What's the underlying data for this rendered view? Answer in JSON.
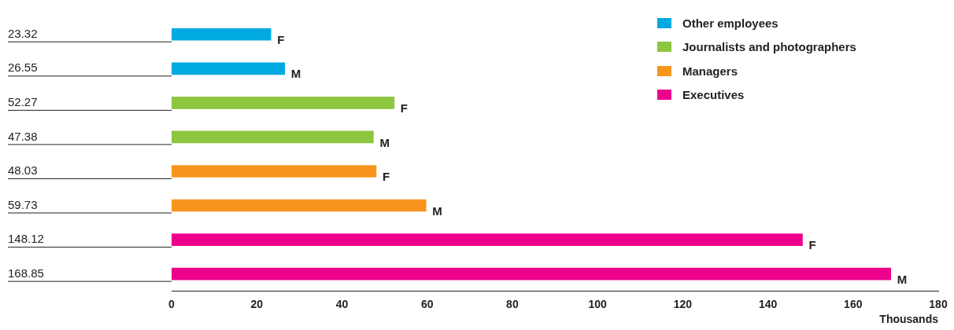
{
  "chart_data": {
    "type": "bar",
    "orientation": "horizontal",
    "xlabel": "Thousands",
    "categories": [
      "23.32",
      "26.55",
      "52.27",
      "47.38",
      "48.03",
      "59.73",
      "148.12",
      "168.85"
    ],
    "series": [
      {
        "name": "Other employees",
        "color": "#00a9e0",
        "values": [
          23.32,
          26.55,
          null,
          null,
          null,
          null,
          null,
          null
        ]
      },
      {
        "name": "Journalists and photographers",
        "color": "#8dc63f",
        "values": [
          null,
          null,
          52.27,
          47.38,
          null,
          null,
          null,
          null
        ]
      },
      {
        "name": "Managers",
        "color": "#f7941d",
        "values": [
          null,
          null,
          null,
          null,
          48.03,
          59.73,
          null,
          null
        ]
      },
      {
        "name": "Executives",
        "color": "#ec008c",
        "values": [
          null,
          null,
          null,
          null,
          null,
          null,
          148.12,
          168.85
        ]
      }
    ],
    "annotations": [
      {
        "text": "F",
        "x": 23.32,
        "y": "23.32"
      },
      {
        "text": "M",
        "x": 26.55,
        "y": "26.55"
      },
      {
        "text": "F",
        "x": 52.27,
        "y": "52.27"
      },
      {
        "text": "M",
        "x": 47.38,
        "y": "47.38"
      },
      {
        "text": "F",
        "x": 48.03,
        "y": "48.03"
      },
      {
        "text": "M",
        "x": 59.73,
        "y": "59.73"
      },
      {
        "text": "F",
        "x": 148.12,
        "y": "148.12"
      },
      {
        "text": "M",
        "x": 168.85,
        "y": "168.85"
      }
    ],
    "xlim": [
      0,
      180
    ],
    "xticks": [
      0,
      20,
      40,
      60,
      80,
      100,
      120,
      140,
      160,
      180
    ],
    "grid": false,
    "legend": "top right"
  }
}
